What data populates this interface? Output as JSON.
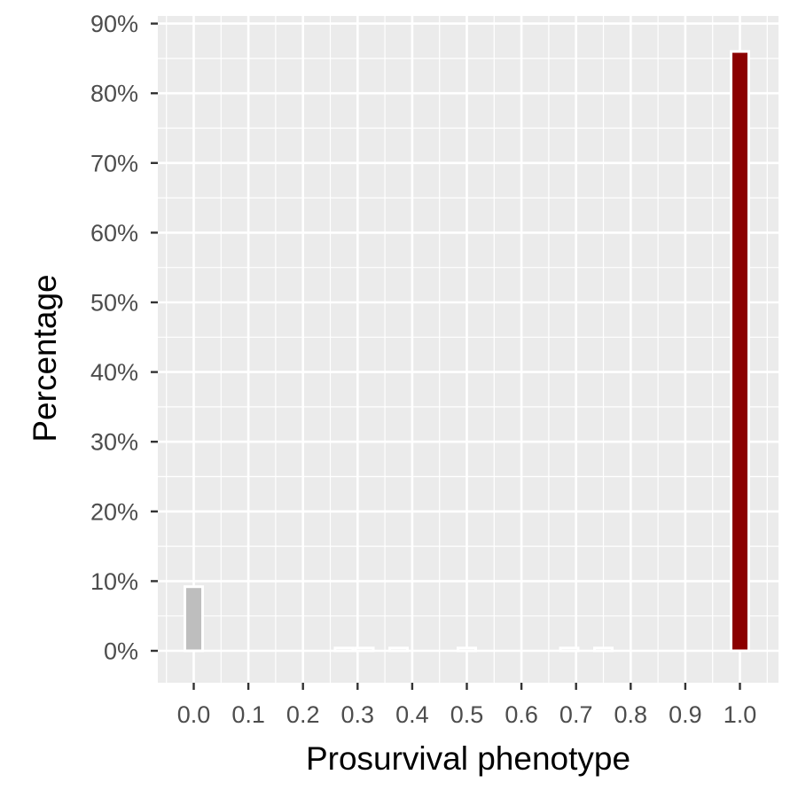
{
  "chart_data": {
    "type": "bar",
    "xlabel": "Prosurvival phenotype",
    "ylabel": "Percentage",
    "x_ticks": [
      "0.0",
      "0.1",
      "0.2",
      "0.3",
      "0.4",
      "0.5",
      "0.6",
      "0.7",
      "0.8",
      "0.9",
      "1.0"
    ],
    "y_ticks": [
      "0%",
      "10%",
      "20%",
      "30%",
      "40%",
      "50%",
      "60%",
      "70%",
      "80%",
      "90%"
    ],
    "xlim": [
      -0.05,
      1.05
    ],
    "ylim": [
      0,
      90
    ],
    "grid": true,
    "legend": "none",
    "bars": [
      {
        "x": 0.0,
        "value": 9.2,
        "color": "#bebebe"
      },
      {
        "x": 0.275,
        "value": 0.4,
        "color": "#bebebe"
      },
      {
        "x": 0.3125,
        "value": 0.4,
        "color": "#bebebe"
      },
      {
        "x": 0.375,
        "value": 0.4,
        "color": "#bebebe"
      },
      {
        "x": 0.5,
        "value": 0.4,
        "color": "#bebebe"
      },
      {
        "x": 0.6875,
        "value": 0.4,
        "color": "#bebebe"
      },
      {
        "x": 0.75,
        "value": 0.4,
        "color": "#bebebe"
      },
      {
        "x": 1.0,
        "value": 86.0,
        "color": "#8b0000"
      }
    ],
    "colors": {
      "panel": "#ebebeb",
      "grid": "#ffffff",
      "bar_outline": "#ffffff"
    }
  }
}
